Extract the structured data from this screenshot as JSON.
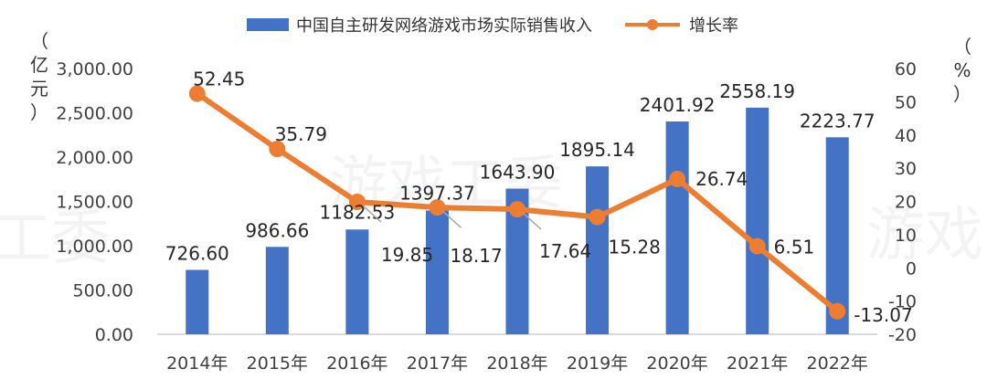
{
  "watermarks": [
    "游戏工委",
    "工委",
    "游戏"
  ],
  "chart_data": {
    "type": "bar",
    "categories": [
      "2014年",
      "2015年",
      "2016年",
      "2017年",
      "2018年",
      "2019年",
      "2020年",
      "2021年",
      "2022年"
    ],
    "series": [
      {
        "name": "中国自主研发网络游戏市场实际销售收入",
        "kind": "bar",
        "axis": "left",
        "color": "#4472C4",
        "values": [
          726.6,
          986.66,
          1182.53,
          1397.37,
          1643.9,
          1895.14,
          2401.92,
          2558.19,
          2223.77
        ],
        "labels": [
          "726.60",
          "986.66",
          "1182.53",
          "1397.37",
          "1643.90",
          "1895.14",
          "2401.92",
          "2558.19",
          "2223.77"
        ]
      },
      {
        "name": "增长率",
        "kind": "line",
        "axis": "right",
        "color": "#ED7D31",
        "values": [
          52.45,
          35.79,
          19.85,
          18.17,
          17.64,
          15.28,
          26.74,
          6.51,
          -13.07
        ],
        "labels": [
          "52.45",
          "35.79",
          "19.85",
          "18.17",
          "17.64",
          "15.28",
          "26.74",
          "6.51",
          "-13.07"
        ]
      }
    ],
    "y_left": {
      "unit_chars": [
        "（",
        "亿",
        "元",
        "）"
      ],
      "ylim": [
        0,
        3000
      ],
      "ticks": [
        "0.00",
        "500.00",
        "1,000.00",
        "1,500.00",
        "2,000.00",
        "2,500.00",
        "3,000.00"
      ]
    },
    "y_right": {
      "unit_chars": [
        "（",
        "%",
        "）"
      ],
      "ylim": [
        -20,
        60
      ],
      "ticks": [
        "-20",
        "-10",
        "0",
        "10",
        "20",
        "30",
        "40",
        "50",
        "60"
      ]
    },
    "legend": "top",
    "grid": false
  }
}
